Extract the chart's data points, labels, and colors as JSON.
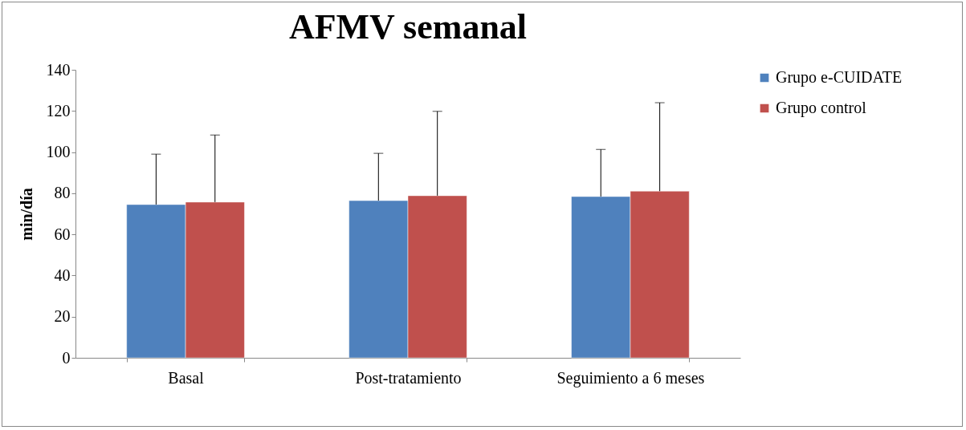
{
  "chart_data": {
    "type": "bar",
    "title": "AFMV semanal",
    "ylabel": "min/día",
    "categories": [
      "Basal",
      "Post-tratamiento",
      "Seguimiento a 6 meses"
    ],
    "series": [
      {
        "name": "Grupo e-CUIDATE",
        "color": "#4f81bd",
        "values": [
          74.5,
          76.4,
          78.4
        ],
        "errors": [
          [
            74.5,
            99
          ],
          [
            76.4,
            99.4
          ],
          [
            78.4,
            101.3
          ]
        ]
      },
      {
        "name": "Grupo control",
        "color": "#c0504d",
        "values": [
          75.7,
          78.8,
          81
        ],
        "errors": [
          [
            75.7,
            108.3
          ],
          [
            78.8,
            119.8
          ],
          [
            81,
            124
          ]
        ]
      }
    ],
    "ylim": [
      0,
      140
    ],
    "yticks": [
      0,
      20,
      40,
      60,
      80,
      100,
      120,
      140
    ],
    "grid": false,
    "legend": "right"
  }
}
